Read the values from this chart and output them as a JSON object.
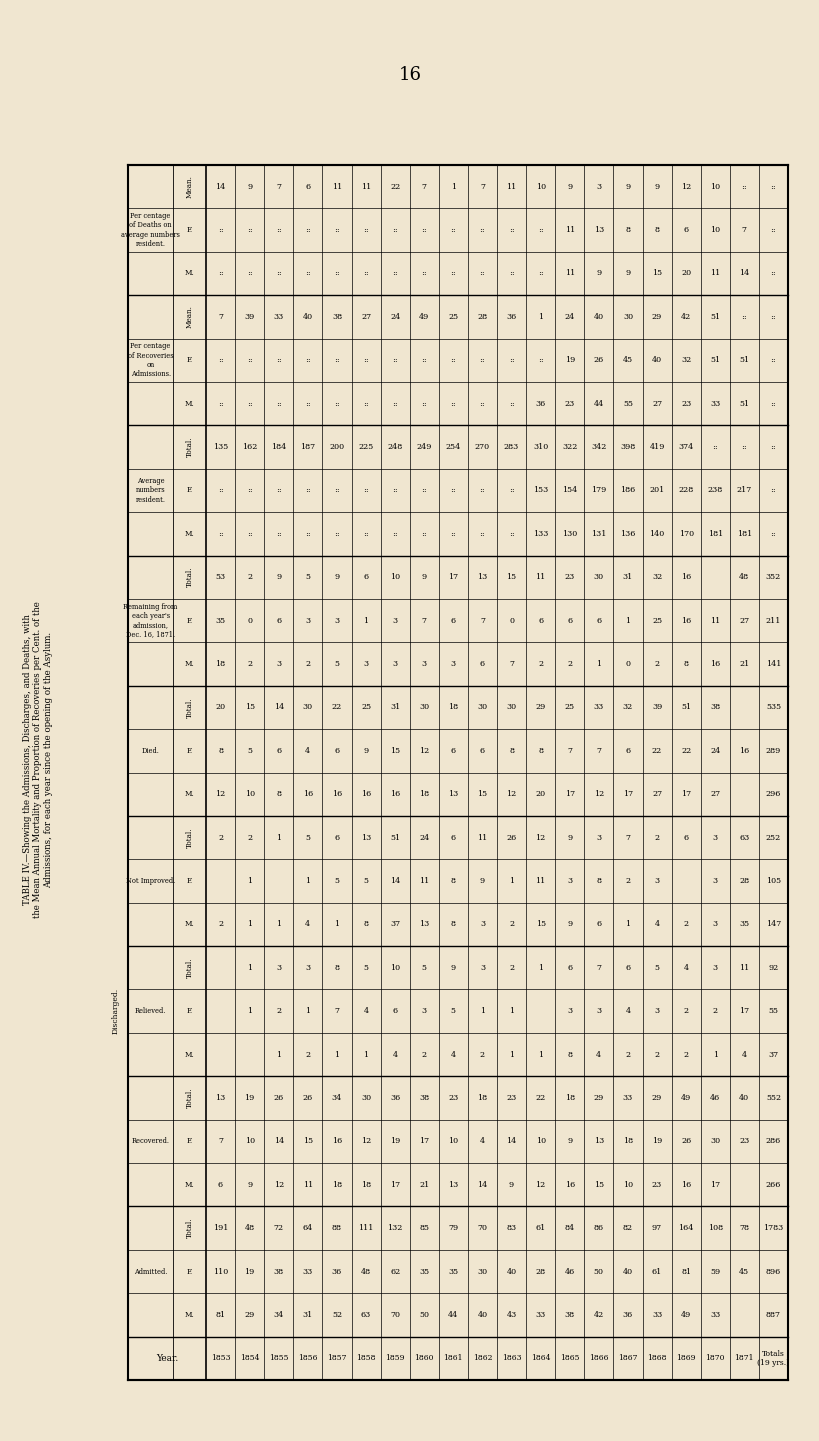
{
  "bg": "#f0e6d0",
  "page_num": "16",
  "side_title1": "TABLE IV.—Showing the Admissions, Discharges, and Deaths, with",
  "side_title2": "the Mean Annual Mortality and Proportion of Recoveries per Cent. of the",
  "side_title3": "Admissions, for each year since the opening of the Asylum.",
  "years": [
    "1853",
    "1854",
    "1855",
    "1856",
    "1857",
    "1858",
    "1859",
    "1860",
    "1861",
    "1862",
    "1863",
    "1864",
    "1865",
    "1866",
    "1867",
    "1868",
    "1869",
    "1870",
    "1871",
    "Totals\n(19 yrs.)"
  ],
  "table_data": [
    [
      "1853",
      "81",
      "110",
      "191",
      "6",
      "7",
      "13",
      "",
      "",
      "",
      "2",
      "",
      "2",
      "12",
      "8",
      "20",
      "18",
      "35",
      "53",
      "",
      "",
      "135",
      "",
      "",
      "7",
      "",
      "",
      "14"
    ],
    [
      "1854",
      "29",
      "19",
      "48",
      "9",
      "10",
      "19",
      "",
      "1",
      "1",
      "1",
      "1",
      "2",
      "10",
      "5",
      "15",
      "2",
      "0",
      "2",
      "",
      "",
      "162",
      "",
      "",
      "39",
      "",
      "",
      "9"
    ],
    [
      "1855",
      "34",
      "38",
      "72",
      "12",
      "14",
      "26",
      "1",
      "2",
      "3",
      "1",
      "",
      "1",
      "8",
      "6",
      "14",
      "3",
      "6",
      "9",
      "",
      "",
      "184",
      "",
      "",
      "33",
      "",
      "",
      "7"
    ],
    [
      "1856",
      "31",
      "33",
      "64",
      "11",
      "15",
      "26",
      "2",
      "1",
      "3",
      "4",
      "1",
      "5",
      "16",
      "4",
      "30",
      "2",
      "3",
      "5",
      "",
      "",
      "187",
      "",
      "",
      "40",
      "",
      "",
      "6"
    ],
    [
      "1857",
      "52",
      "36",
      "88",
      "18",
      "16",
      "34",
      "1",
      "7",
      "8",
      "1",
      "5",
      "6",
      "16",
      "6",
      "22",
      "5",
      "3",
      "9",
      "",
      "",
      "200",
      "",
      "",
      "38",
      "",
      "",
      "11"
    ],
    [
      "1858",
      "63",
      "48",
      "111",
      "18",
      "12",
      "30",
      "1",
      "4",
      "5",
      "8",
      "5",
      "13",
      "16",
      "9",
      "25",
      "3",
      "1",
      "6",
      "",
      "",
      "225",
      "",
      "",
      "27",
      "",
      "",
      "11"
    ],
    [
      "1859",
      "70",
      "62",
      "132",
      "17",
      "19",
      "36",
      "4",
      "6",
      "10",
      "37",
      "14",
      "51",
      "16",
      "15",
      "31",
      "3",
      "3",
      "10",
      "",
      "",
      "248",
      "",
      "",
      "24",
      "",
      "",
      "22"
    ],
    [
      "1860",
      "50",
      "35",
      "85",
      "21",
      "17",
      "38",
      "2",
      "3",
      "5",
      "13",
      "11",
      "24",
      "18",
      "12",
      "30",
      "3",
      "7",
      "9",
      "",
      "",
      "249",
      "",
      "",
      "49",
      "",
      "",
      "7"
    ],
    [
      "1861",
      "44",
      "35",
      "79",
      "13",
      "10",
      "23",
      "4",
      "5",
      "9",
      "8",
      "8",
      "6",
      "13",
      "6",
      "18",
      "3",
      "6",
      "17",
      "",
      "",
      "254",
      "",
      "",
      "25",
      "",
      "",
      "1"
    ],
    [
      "1862",
      "40",
      "30",
      "70",
      "14",
      "4",
      "18",
      "2",
      "1",
      "3",
      "3",
      "9",
      "11",
      "15",
      "6",
      "30",
      "6",
      "7",
      "13",
      "",
      "",
      "270",
      "",
      "",
      "28",
      "",
      "",
      "7"
    ],
    [
      "1863",
      "43",
      "40",
      "83",
      "9",
      "14",
      "23",
      "1",
      "1",
      "2",
      "2",
      "1",
      "26",
      "12",
      "8",
      "30",
      "7",
      "0",
      "15",
      "",
      "",
      "283",
      "",
      "",
      "36",
      "",
      "",
      "11"
    ],
    [
      "1864",
      "33",
      "28",
      "61",
      "12",
      "10",
      "22",
      "1",
      "",
      "1",
      "15",
      "11",
      "12",
      "20",
      "8",
      "29",
      "2",
      "6",
      "11",
      "133",
      "153",
      "310",
      "36",
      "",
      "1",
      "",
      "",
      "10"
    ],
    [
      "1865",
      "38",
      "46",
      "84",
      "16",
      "9",
      "18",
      "8",
      "3",
      "6",
      "9",
      "3",
      "9",
      "17",
      "7",
      "25",
      "2",
      "6",
      "23",
      "130",
      "154",
      "322",
      "23",
      "19",
      "24",
      "11",
      "11",
      "9"
    ],
    [
      "1866",
      "42",
      "50",
      "86",
      "15",
      "13",
      "29",
      "4",
      "3",
      "7",
      "6",
      "8",
      "3",
      "12",
      "7",
      "33",
      "1",
      "6",
      "30",
      "131",
      "179",
      "342",
      "44",
      "26",
      "40",
      "9",
      "13",
      "3"
    ],
    [
      "1867",
      "36",
      "40",
      "82",
      "10",
      "18",
      "33",
      "2",
      "4",
      "6",
      "1",
      "2",
      "7",
      "17",
      "6",
      "32",
      "0",
      "1",
      "31",
      "136",
      "186",
      "398",
      "55",
      "45",
      "30",
      "9",
      "8",
      "9"
    ],
    [
      "1868",
      "33",
      "61",
      "97",
      "23",
      "19",
      "29",
      "2",
      "3",
      "5",
      "4",
      "3",
      "2",
      "27",
      "22",
      "39",
      "2",
      "25",
      "32",
      "140",
      "201",
      "419",
      "27",
      "40",
      "29",
      "15",
      "8",
      "9"
    ],
    [
      "1869",
      "49",
      "81",
      "164",
      "16",
      "26",
      "49",
      "2",
      "2",
      "4",
      "2",
      "",
      "6",
      "17",
      "22",
      "51",
      "8",
      "16",
      "16",
      "170",
      "228",
      "374",
      "23",
      "32",
      "42",
      "20",
      "6",
      "12"
    ],
    [
      "1870",
      "33",
      "59",
      "108",
      "17",
      "30",
      "46",
      "1",
      "2",
      "3",
      "3",
      "3",
      "3",
      "27",
      "24",
      "38",
      "16",
      "11",
      "",
      "181",
      "238",
      "",
      "33",
      "51",
      "51",
      "11",
      "10",
      "10"
    ],
    [
      "1871",
      "",
      "45",
      "78",
      "",
      "23",
      "40",
      "4",
      "17",
      "11",
      "35",
      "28",
      "63",
      "",
      "16",
      "",
      "21",
      "27",
      "48",
      "181",
      "217",
      "",
      "51",
      "51",
      "",
      "14",
      "7",
      ""
    ],
    [
      "Totals\n(19 yrs.)",
      "887",
      "896",
      "1783",
      "266",
      "286",
      "552",
      "37",
      "55",
      "92",
      "147",
      "105",
      "252",
      "296",
      "289",
      "535",
      "141",
      "211",
      "352",
      "",
      "",
      "",
      "",
      "",
      "",
      "",
      "",
      ""
    ]
  ]
}
